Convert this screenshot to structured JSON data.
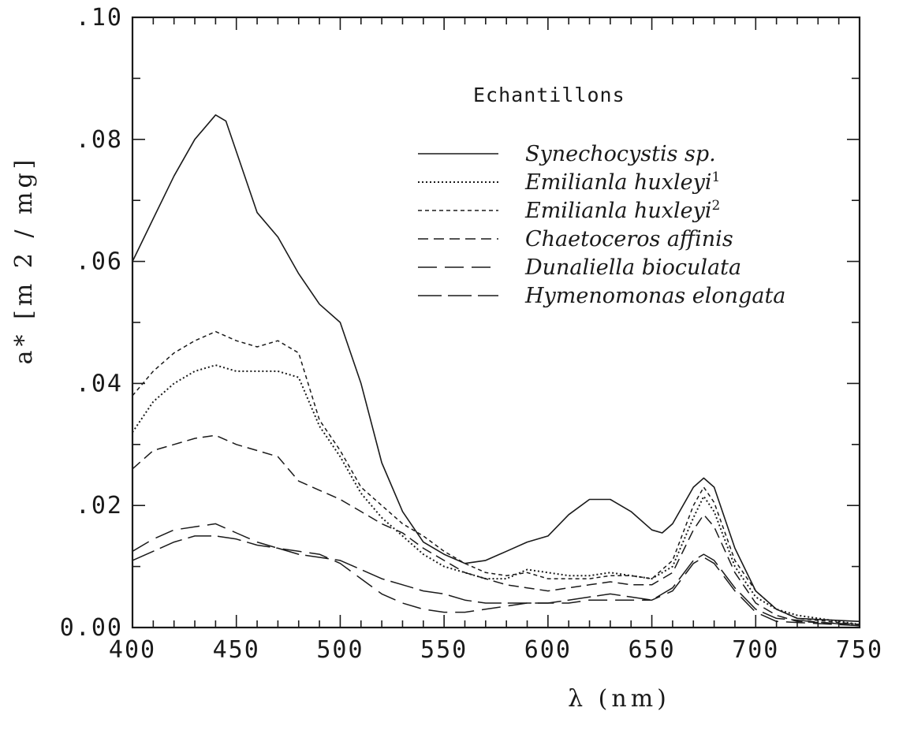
{
  "chart_data": {
    "type": "line",
    "xlabel": "λ (nm)",
    "ylabel": "a* [m 2 / mg]",
    "xlim": [
      400,
      750
    ],
    "ylim": [
      0,
      0.1
    ],
    "x_ticks": [
      "400",
      "450",
      "500",
      "550",
      "600",
      "650",
      "700",
      "750"
    ],
    "y_ticks": [
      "0.00",
      ".02",
      ".04",
      ".06",
      ".08",
      ".10"
    ],
    "legend_title": "Echantillons",
    "legend_placement": "top-right",
    "grid": false,
    "series": [
      {
        "name": "Synechocystis sp.",
        "style": "solid",
        "points": [
          [
            400,
            0.06
          ],
          [
            410,
            0.067
          ],
          [
            420,
            0.074
          ],
          [
            430,
            0.08
          ],
          [
            440,
            0.084
          ],
          [
            445,
            0.083
          ],
          [
            450,
            0.078
          ],
          [
            460,
            0.068
          ],
          [
            470,
            0.064
          ],
          [
            480,
            0.058
          ],
          [
            490,
            0.053
          ],
          [
            500,
            0.05
          ],
          [
            510,
            0.04
          ],
          [
            520,
            0.027
          ],
          [
            530,
            0.019
          ],
          [
            540,
            0.014
          ],
          [
            550,
            0.012
          ],
          [
            560,
            0.0105
          ],
          [
            570,
            0.011
          ],
          [
            580,
            0.0125
          ],
          [
            590,
            0.014
          ],
          [
            600,
            0.015
          ],
          [
            610,
            0.0185
          ],
          [
            620,
            0.021
          ],
          [
            630,
            0.021
          ],
          [
            640,
            0.019
          ],
          [
            650,
            0.016
          ],
          [
            655,
            0.0155
          ],
          [
            660,
            0.017
          ],
          [
            670,
            0.023
          ],
          [
            675,
            0.0245
          ],
          [
            680,
            0.023
          ],
          [
            690,
            0.013
          ],
          [
            700,
            0.006
          ],
          [
            710,
            0.003
          ],
          [
            720,
            0.0015
          ],
          [
            750,
            0.001
          ]
        ]
      },
      {
        "name": "Emilianla huxleyi",
        "superscript": "1",
        "style": "dotted",
        "points": [
          [
            400,
            0.032
          ],
          [
            410,
            0.037
          ],
          [
            420,
            0.04
          ],
          [
            430,
            0.042
          ],
          [
            440,
            0.043
          ],
          [
            450,
            0.042
          ],
          [
            460,
            0.042
          ],
          [
            470,
            0.042
          ],
          [
            480,
            0.041
          ],
          [
            490,
            0.033
          ],
          [
            500,
            0.028
          ],
          [
            510,
            0.022
          ],
          [
            520,
            0.018
          ],
          [
            530,
            0.015
          ],
          [
            540,
            0.012
          ],
          [
            550,
            0.01
          ],
          [
            560,
            0.009
          ],
          [
            570,
            0.008
          ],
          [
            580,
            0.008
          ],
          [
            590,
            0.0095
          ],
          [
            600,
            0.009
          ],
          [
            610,
            0.0085
          ],
          [
            620,
            0.0085
          ],
          [
            630,
            0.009
          ],
          [
            640,
            0.0085
          ],
          [
            650,
            0.008
          ],
          [
            660,
            0.01
          ],
          [
            670,
            0.018
          ],
          [
            675,
            0.0215
          ],
          [
            680,
            0.019
          ],
          [
            690,
            0.01
          ],
          [
            700,
            0.005
          ],
          [
            710,
            0.003
          ],
          [
            720,
            0.002
          ],
          [
            750,
            0.0005
          ]
        ]
      },
      {
        "name": "Emilianla huxleyi",
        "superscript": "2",
        "style": "short-dash",
        "points": [
          [
            400,
            0.038
          ],
          [
            410,
            0.042
          ],
          [
            420,
            0.045
          ],
          [
            430,
            0.047
          ],
          [
            440,
            0.0485
          ],
          [
            450,
            0.047
          ],
          [
            460,
            0.046
          ],
          [
            470,
            0.047
          ],
          [
            480,
            0.045
          ],
          [
            490,
            0.034
          ],
          [
            500,
            0.029
          ],
          [
            510,
            0.023
          ],
          [
            520,
            0.02
          ],
          [
            530,
            0.017
          ],
          [
            540,
            0.015
          ],
          [
            550,
            0.0125
          ],
          [
            560,
            0.0105
          ],
          [
            570,
            0.009
          ],
          [
            580,
            0.0085
          ],
          [
            590,
            0.009
          ],
          [
            600,
            0.008
          ],
          [
            610,
            0.008
          ],
          [
            620,
            0.008
          ],
          [
            630,
            0.0085
          ],
          [
            640,
            0.0085
          ],
          [
            650,
            0.008
          ],
          [
            660,
            0.011
          ],
          [
            670,
            0.02
          ],
          [
            675,
            0.023
          ],
          [
            680,
            0.0205
          ],
          [
            690,
            0.011
          ],
          [
            700,
            0.006
          ],
          [
            710,
            0.003
          ],
          [
            720,
            0.0015
          ],
          [
            750,
            0.0005
          ]
        ]
      },
      {
        "name": "Chaetoceros affinis",
        "style": "medium-dash",
        "points": [
          [
            400,
            0.026
          ],
          [
            410,
            0.029
          ],
          [
            420,
            0.03
          ],
          [
            430,
            0.031
          ],
          [
            440,
            0.0315
          ],
          [
            450,
            0.03
          ],
          [
            460,
            0.029
          ],
          [
            470,
            0.028
          ],
          [
            480,
            0.024
          ],
          [
            490,
            0.0225
          ],
          [
            500,
            0.021
          ],
          [
            510,
            0.019
          ],
          [
            520,
            0.017
          ],
          [
            530,
            0.0155
          ],
          [
            540,
            0.013
          ],
          [
            550,
            0.011
          ],
          [
            560,
            0.009
          ],
          [
            570,
            0.008
          ],
          [
            580,
            0.007
          ],
          [
            590,
            0.0065
          ],
          [
            600,
            0.006
          ],
          [
            610,
            0.0065
          ],
          [
            620,
            0.007
          ],
          [
            630,
            0.0075
          ],
          [
            640,
            0.007
          ],
          [
            650,
            0.007
          ],
          [
            660,
            0.009
          ],
          [
            670,
            0.016
          ],
          [
            675,
            0.0185
          ],
          [
            680,
            0.0165
          ],
          [
            690,
            0.009
          ],
          [
            700,
            0.004
          ],
          [
            710,
            0.002
          ],
          [
            720,
            0.001
          ],
          [
            750,
            0.0005
          ]
        ]
      },
      {
        "name": "Dunaliella bioculata",
        "style": "long-dash",
        "points": [
          [
            400,
            0.0125
          ],
          [
            410,
            0.0145
          ],
          [
            420,
            0.016
          ],
          [
            430,
            0.0165
          ],
          [
            440,
            0.017
          ],
          [
            450,
            0.0155
          ],
          [
            460,
            0.014
          ],
          [
            470,
            0.013
          ],
          [
            480,
            0.0125
          ],
          [
            490,
            0.012
          ],
          [
            500,
            0.0105
          ],
          [
            510,
            0.008
          ],
          [
            520,
            0.0055
          ],
          [
            530,
            0.004
          ],
          [
            540,
            0.003
          ],
          [
            550,
            0.0025
          ],
          [
            560,
            0.0025
          ],
          [
            570,
            0.003
          ],
          [
            580,
            0.0035
          ],
          [
            590,
            0.004
          ],
          [
            600,
            0.004
          ],
          [
            610,
            0.004
          ],
          [
            620,
            0.0045
          ],
          [
            630,
            0.0045
          ],
          [
            640,
            0.0045
          ],
          [
            650,
            0.0045
          ],
          [
            660,
            0.006
          ],
          [
            670,
            0.0105
          ],
          [
            675,
            0.0115
          ],
          [
            680,
            0.0105
          ],
          [
            690,
            0.006
          ],
          [
            700,
            0.0025
          ],
          [
            710,
            0.001
          ],
          [
            750,
            0.0003
          ]
        ]
      },
      {
        "name": "Hymenomonas elongata",
        "style": "long-dash-2",
        "points": [
          [
            400,
            0.011
          ],
          [
            410,
            0.0125
          ],
          [
            420,
            0.014
          ],
          [
            430,
            0.015
          ],
          [
            440,
            0.015
          ],
          [
            450,
            0.0145
          ],
          [
            460,
            0.0135
          ],
          [
            470,
            0.013
          ],
          [
            480,
            0.012
          ],
          [
            490,
            0.0115
          ],
          [
            500,
            0.011
          ],
          [
            510,
            0.0095
          ],
          [
            520,
            0.008
          ],
          [
            530,
            0.007
          ],
          [
            540,
            0.006
          ],
          [
            550,
            0.0055
          ],
          [
            560,
            0.0045
          ],
          [
            570,
            0.004
          ],
          [
            580,
            0.004
          ],
          [
            590,
            0.004
          ],
          [
            600,
            0.004
          ],
          [
            610,
            0.0045
          ],
          [
            620,
            0.005
          ],
          [
            630,
            0.0055
          ],
          [
            640,
            0.005
          ],
          [
            650,
            0.0045
          ],
          [
            660,
            0.0065
          ],
          [
            670,
            0.011
          ],
          [
            675,
            0.012
          ],
          [
            680,
            0.011
          ],
          [
            690,
            0.0065
          ],
          [
            700,
            0.003
          ],
          [
            710,
            0.0015
          ],
          [
            750,
            0.0003
          ]
        ]
      }
    ]
  }
}
